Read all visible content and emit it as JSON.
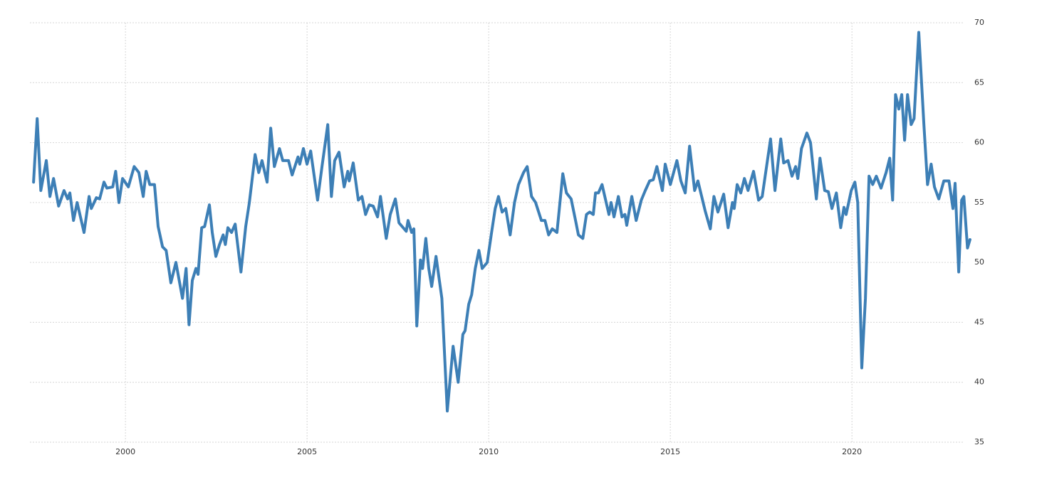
{
  "chart_data": {
    "type": "line",
    "color": "#3d7fb6",
    "grid": true,
    "xlim": [
      1997.37,
      2023.31
    ],
    "xticks": [
      2000,
      2005,
      2010,
      2015,
      2020
    ],
    "ylim": [
      35,
      70
    ],
    "yticks": [
      35,
      40,
      45,
      50,
      55,
      60,
      65,
      70
    ],
    "x": [
      1997.47,
      1997.57,
      1997.67,
      1997.82,
      1997.92,
      1998.02,
      1998.16,
      1998.31,
      1998.41,
      1998.47,
      1998.57,
      1998.67,
      1998.86,
      1999.0,
      1999.06,
      1999.2,
      1999.29,
      1999.41,
      1999.49,
      1999.65,
      1999.73,
      1999.82,
      1999.92,
      2000.08,
      2000.24,
      2000.37,
      2000.49,
      2000.57,
      2000.67,
      2000.8,
      2000.9,
      2001.02,
      2001.12,
      2001.25,
      2001.39,
      2001.57,
      2001.67,
      2001.75,
      2001.84,
      2001.94,
      2002.0,
      2002.1,
      2002.18,
      2002.31,
      2002.39,
      2002.49,
      2002.59,
      2002.69,
      2002.75,
      2002.82,
      2002.92,
      2003.02,
      2003.18,
      2003.31,
      2003.41,
      2003.57,
      2003.67,
      2003.76,
      2003.9,
      2004.0,
      2004.1,
      2004.24,
      2004.33,
      2004.49,
      2004.59,
      2004.75,
      2004.8,
      2004.9,
      2005.0,
      2005.1,
      2005.29,
      2005.41,
      2005.57,
      2005.67,
      2005.76,
      2005.88,
      2006.02,
      2006.12,
      2006.16,
      2006.27,
      2006.41,
      2006.51,
      2006.61,
      2006.71,
      2006.82,
      2006.94,
      2007.02,
      2007.18,
      2007.29,
      2007.43,
      2007.53,
      2007.73,
      2007.78,
      2007.88,
      2007.94,
      2008.02,
      2008.12,
      2008.18,
      2008.27,
      2008.35,
      2008.43,
      2008.55,
      2008.71,
      2008.86,
      2009.02,
      2009.16,
      2009.29,
      2009.35,
      2009.45,
      2009.53,
      2009.63,
      2009.73,
      2009.82,
      2009.96,
      2010.08,
      2010.18,
      2010.27,
      2010.37,
      2010.47,
      2010.59,
      2010.71,
      2010.82,
      2010.96,
      2011.06,
      2011.18,
      2011.29,
      2011.45,
      2011.55,
      2011.65,
      2011.75,
      2011.88,
      2012.04,
      2012.14,
      2012.27,
      2012.39,
      2012.47,
      2012.59,
      2012.69,
      2012.78,
      2012.88,
      2012.94,
      2013.02,
      2013.12,
      2013.31,
      2013.37,
      2013.45,
      2013.57,
      2013.67,
      2013.75,
      2013.8,
      2013.94,
      2014.06,
      2014.2,
      2014.31,
      2014.43,
      2014.53,
      2014.63,
      2014.78,
      2014.86,
      2015.0,
      2015.18,
      2015.29,
      2015.41,
      2015.53,
      2015.67,
      2015.76,
      2015.96,
      2016.1,
      2016.2,
      2016.31,
      2016.47,
      2016.59,
      2016.71,
      2016.76,
      2016.84,
      2016.94,
      2017.04,
      2017.14,
      2017.29,
      2017.43,
      2017.53,
      2017.63,
      2017.76,
      2017.88,
      2018.04,
      2018.12,
      2018.24,
      2018.35,
      2018.45,
      2018.51,
      2018.61,
      2018.76,
      2018.86,
      2019.02,
      2019.12,
      2019.25,
      2019.35,
      2019.45,
      2019.57,
      2019.69,
      2019.78,
      2019.84,
      2019.98,
      2020.08,
      2020.16,
      2020.27,
      2020.37,
      2020.47,
      2020.57,
      2020.67,
      2020.8,
      2020.94,
      2021.04,
      2021.12,
      2021.2,
      2021.29,
      2021.37,
      2021.45,
      2021.53,
      2021.63,
      2021.71,
      2021.84,
      2021.98,
      2022.08,
      2022.18,
      2022.27,
      2022.39,
      2022.53,
      2022.67,
      2022.78,
      2022.84,
      2022.94,
      2023.02,
      2023.08,
      2023.18,
      2023.25
    ],
    "values": [
      56.7,
      62,
      56,
      58.5,
      55.5,
      57,
      54.7,
      56,
      55.3,
      55.8,
      53.5,
      55,
      52.5,
      55.5,
      54.5,
      55.4,
      55.3,
      56.7,
      56.2,
      56.3,
      57.6,
      55,
      57,
      56.3,
      58,
      57.5,
      55.5,
      57.6,
      56.5,
      56.5,
      53,
      51.3,
      51,
      48.3,
      50,
      47,
      49.5,
      44.8,
      48.5,
      49.5,
      49,
      52.9,
      53,
      54.8,
      52.5,
      50.5,
      51.5,
      52.3,
      51.5,
      52.9,
      52.5,
      53.2,
      49.2,
      53,
      55,
      59,
      57.5,
      58.5,
      56.7,
      61.2,
      58,
      59.5,
      58.5,
      58.5,
      57.3,
      58.8,
      58.2,
      59.5,
      58.2,
      59.3,
      55.2,
      58,
      61.5,
      55.5,
      58.5,
      59.2,
      56.3,
      57.6,
      56.8,
      58.3,
      55.2,
      55.5,
      54,
      54.8,
      54.7,
      53.8,
      55.5,
      52,
      54,
      55.3,
      53.3,
      52.6,
      53.5,
      52.5,
      52.8,
      44.7,
      50.2,
      49.5,
      52,
      49.5,
      48,
      50.5,
      47,
      37.6,
      43,
      40,
      44,
      44.3,
      46.5,
      47.3,
      49.5,
      51,
      49.5,
      50,
      52.5,
      54.5,
      55.5,
      54.2,
      54.5,
      52.3,
      55,
      56.5,
      57.5,
      58,
      55.5,
      55,
      53.5,
      53.5,
      52.3,
      52.8,
      52.5,
      57.4,
      55.8,
      55.3,
      53.5,
      52.3,
      52,
      54,
      54.2,
      54,
      55.8,
      55.8,
      56.5,
      54,
      55,
      53.8,
      55.5,
      53.8,
      54,
      53.1,
      55.5,
      53.5,
      55.2,
      56,
      56.8,
      56.9,
      58,
      56,
      58.2,
      56.5,
      58.5,
      56.8,
      55.8,
      59.7,
      56,
      56.8,
      54.3,
      52.8,
      55.5,
      54.2,
      55.7,
      52.9,
      55,
      54.5,
      56.5,
      55.8,
      57,
      56,
      57.6,
      55.2,
      55.5,
      57.6,
      60.3,
      56,
      60.3,
      58.3,
      58.5,
      57.2,
      58,
      57,
      59.5,
      60.8,
      60,
      55.3,
      58.7,
      56,
      55.9,
      54.5,
      55.8,
      52.9,
      54.6,
      54,
      56,
      56.7,
      55,
      41.2,
      47,
      57.2,
      56.5,
      57.2,
      56.2,
      57.5,
      58.7,
      55.2,
      64,
      62.8,
      64,
      60.2,
      64,
      61.5,
      62,
      69.2,
      61.5,
      56.5,
      58.2,
      56.3,
      55.3,
      56.8,
      56.8,
      54.5,
      56.6,
      49.2,
      55.2,
      55.5,
      51.2,
      51.9
    ]
  }
}
